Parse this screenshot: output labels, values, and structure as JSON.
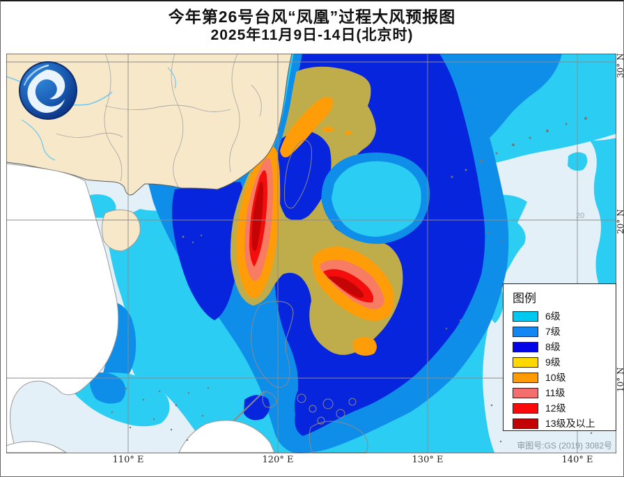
{
  "title": {
    "line1": "今年第26号台风“凤凰”过程大风预报图",
    "line2": "2025年11月9日-14日(北京时)"
  },
  "legend": {
    "title": "图例",
    "items": [
      {
        "label": "6级",
        "color": "#00C9F0"
      },
      {
        "label": "7级",
        "color": "#1388F2"
      },
      {
        "label": "8级",
        "color": "#0404E8"
      },
      {
        "label": "9级",
        "color": "#FFD800"
      },
      {
        "label": "10级",
        "color": "#FF9C05"
      },
      {
        "label": "11级",
        "color": "#F56E6E"
      },
      {
        "label": "12级",
        "color": "#FA0A0A"
      },
      {
        "label": "13级及以上",
        "color": "#C40404"
      }
    ]
  },
  "axes": {
    "lon": [
      "110° E",
      "120° E",
      "130° E",
      "140° E"
    ],
    "lat": [
      "30° N",
      "20° N",
      "10° N"
    ],
    "inline_lat_label": "20"
  },
  "credit": "审图号:GS (2019) 3082号",
  "map_colors": {
    "sea": "#E3F0F8",
    "lv6": "#2BCDF2",
    "lv7": "#0E8EE9",
    "lv8": "#0625DC",
    "lv9": "#BFAD4B",
    "lv10": "#FF9D08",
    "lv11": "#F87B63",
    "lv12": "#F30D0D",
    "lv13": "#C50505",
    "land_china": "#F6E8C8",
    "land_other": "#FFFFFF",
    "border": "#9A9A9A",
    "coast": "#5A5A5A",
    "river": "#6FC8F0",
    "grid": "#8C8C8C"
  },
  "logo": {
    "name": "meteorological-administration-logo"
  }
}
